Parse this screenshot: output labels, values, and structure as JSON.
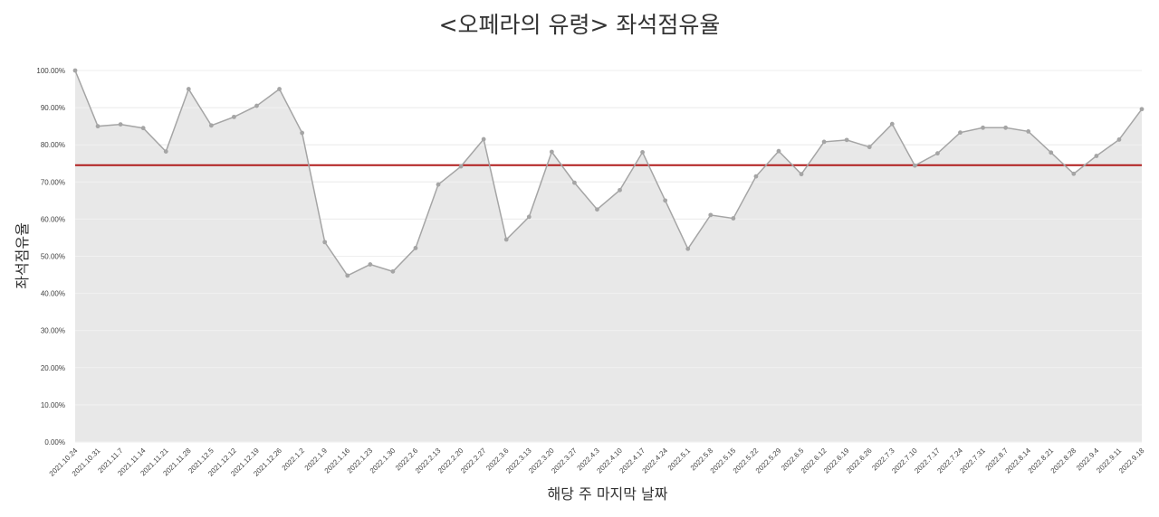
{
  "chart_data": {
    "type": "area",
    "title": "<오페라의 유령> 좌석점유율",
    "xlabel": "해당 주 마지막 날짜",
    "ylabel": "좌석점유율",
    "ylim": [
      0,
      100
    ],
    "y_ticks": [
      "0.00%",
      "10.00%",
      "20.00%",
      "30.00%",
      "40.00%",
      "50.00%",
      "60.00%",
      "70.00%",
      "80.00%",
      "90.00%",
      "100.00%"
    ],
    "grid": true,
    "legend": "none",
    "x": [
      "2021.10.24",
      "2021.10.31",
      "2021.11.7",
      "2021.11.14",
      "2021.11.21",
      "2021.11.28",
      "2021.12.5",
      "2021.12.12",
      "2021.12.19",
      "2021.12.26",
      "2022.1.2",
      "2022.1.9",
      "2022.1.16",
      "2022.1.23",
      "2022.1.30",
      "2022.2.6",
      "2022.2.13",
      "2022.2.20",
      "2022.2.27",
      "2022.3.6",
      "2022.3.13",
      "2022.3.20",
      "2022.3.27",
      "2022.4.3",
      "2022.4.10",
      "2022.4.17",
      "2022.4.24",
      "2022.5.1",
      "2022.5.8",
      "2022.5.15",
      "2022.5.22",
      "2022.5.29",
      "2022.6.5",
      "2022.6.12",
      "2022.6.19",
      "2022.6.26",
      "2022.7.3",
      "2022.7.10",
      "2022.7.17",
      "2022.7.24",
      "2022.7.31",
      "2022.8.7",
      "2022.8.14",
      "2022.8.21",
      "2022.8.28",
      "2022.9.4",
      "2022.9.11",
      "2022.9.18"
    ],
    "series": [
      {
        "values": [
          100.0,
          85.0,
          85.5,
          84.5,
          78.2,
          95.0,
          85.2,
          87.5,
          90.5,
          95.0,
          83.2,
          53.8,
          44.8,
          47.8,
          45.9,
          52.2,
          69.3,
          74.2,
          81.5,
          54.5,
          60.6,
          78.1,
          69.8,
          62.6,
          67.8,
          78.0,
          65.0,
          52.0,
          61.1,
          60.2,
          71.5,
          78.3,
          72.1,
          80.8,
          81.3,
          79.4,
          85.6,
          74.4,
          77.7,
          83.3,
          84.6,
          84.6,
          83.6,
          77.9,
          72.2,
          77.0,
          81.4,
          89.6
        ],
        "line_color": "#a5a5a5",
        "fill_color": "#e4e4e4"
      }
    ],
    "reference_line": {
      "value": 74.5,
      "color": "#b01c1c"
    }
  }
}
